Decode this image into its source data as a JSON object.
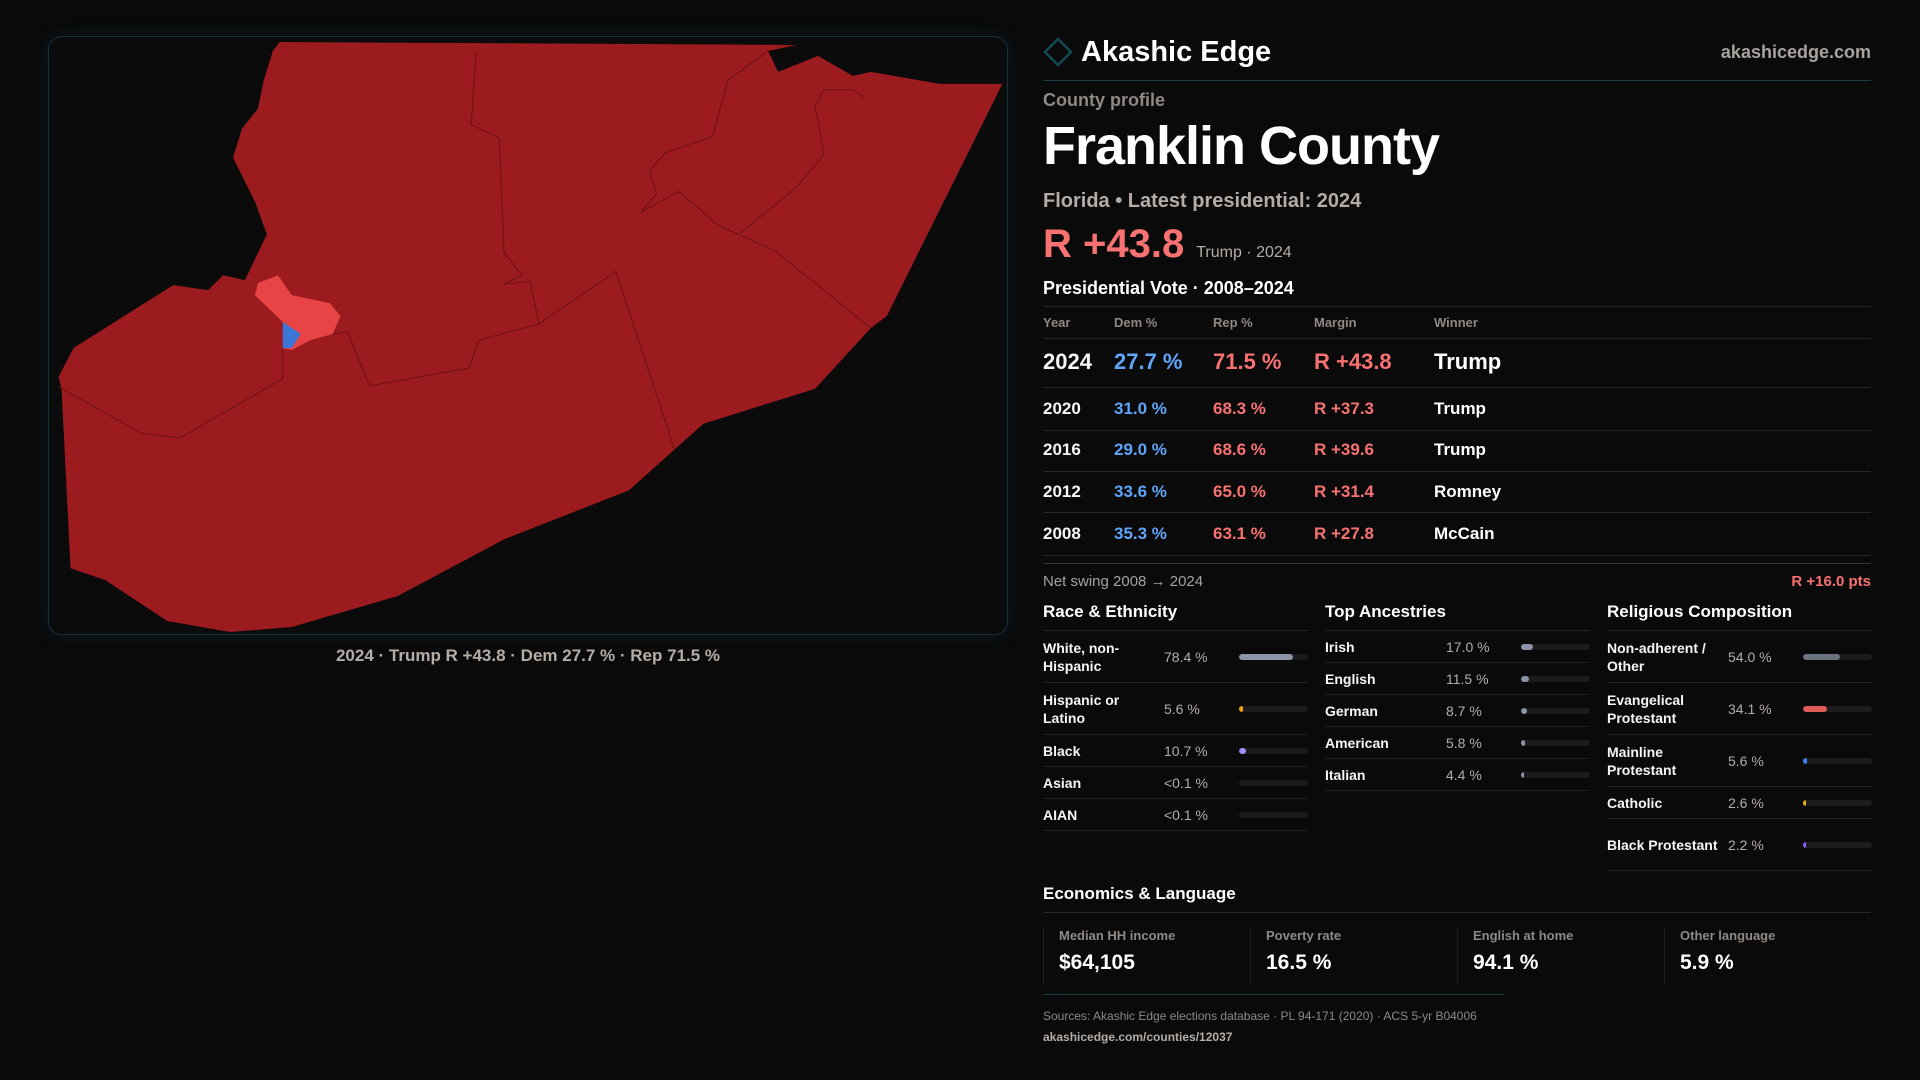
{
  "brand": {
    "name": "Akashic Edge",
    "site": "akashicedge.com",
    "logo_icon": "diamond-outline-icon"
  },
  "header": {
    "label": "County profile",
    "county": "Franklin County",
    "subtitle": "Florida • Latest presidential: 2024",
    "margin": "R +43.8",
    "margin_note": "Trump · 2024"
  },
  "map": {
    "caption": "2024 · Trump R +43.8 · Dem 27.7 % · Rep 71.5 %",
    "colors": {
      "strong_rep": "#9b1b1e",
      "lean_rep": "#e84345",
      "dem": "#3b76d6"
    }
  },
  "votes": {
    "title": "Presidential Vote · 2008–2024",
    "headers": [
      "Year",
      "Dem %",
      "Rep %",
      "Margin",
      "Winner"
    ],
    "rows": [
      {
        "year": "2024",
        "dem": "27.7 %",
        "rep": "71.5 %",
        "margin": "R +43.8",
        "winner": "Trump"
      },
      {
        "year": "2020",
        "dem": "31.0 %",
        "rep": "68.3 %",
        "margin": "R +37.3",
        "winner": "Trump"
      },
      {
        "year": "2016",
        "dem": "29.0 %",
        "rep": "68.6 %",
        "margin": "R +39.6",
        "winner": "Trump"
      },
      {
        "year": "2012",
        "dem": "33.6 %",
        "rep": "65.0 %",
        "margin": "R +31.4",
        "winner": "Romney"
      },
      {
        "year": "2008",
        "dem": "35.3 %",
        "rep": "63.1 %",
        "margin": "R +27.8",
        "winner": "McCain"
      }
    ],
    "swing_label": "Net swing 2008 → 2024",
    "swing_value": "R +16.0 pts"
  },
  "panels": [
    {
      "title": "Race & Ethnicity",
      "items": [
        {
          "label": "White, non-Hispanic",
          "value": "78.4 %",
          "pct": 78.4,
          "color": "#8b95a7"
        },
        {
          "label": "Hispanic or Latino",
          "value": "5.6 %",
          "pct": 5.6,
          "color": "#f59e0b"
        },
        {
          "label": "Black",
          "value": "10.7 %",
          "pct": 10.7,
          "color": "#a78bfa"
        },
        {
          "label": "Asian",
          "value": "<0.1 %",
          "pct": 0,
          "color": "#8b95a7"
        },
        {
          "label": "AIAN",
          "value": "<0.1 %",
          "pct": 0,
          "color": "#8b95a7"
        }
      ]
    },
    {
      "title": "Top Ancestries",
      "items": [
        {
          "label": "Irish",
          "value": "17.0 %",
          "pct": 17.0,
          "color": "#8b95a7"
        },
        {
          "label": "English",
          "value": "11.5 %",
          "pct": 11.5,
          "color": "#8b95a7"
        },
        {
          "label": "German",
          "value": "8.7 %",
          "pct": 8.7,
          "color": "#8b95a7"
        },
        {
          "label": "American",
          "value": "5.8 %",
          "pct": 5.8,
          "color": "#8b95a7"
        },
        {
          "label": "Italian",
          "value": "4.4 %",
          "pct": 4.4,
          "color": "#8b95a7"
        }
      ]
    },
    {
      "title": "Religious Composition",
      "items": [
        {
          "label": "Non-adherent / Other",
          "value": "54.0 %",
          "pct": 54.0,
          "color": "#6b7280"
        },
        {
          "label": "Evangelical Protestant",
          "value": "34.1 %",
          "pct": 34.1,
          "color": "#e05a5a"
        },
        {
          "label": "Mainline Protestant",
          "value": "5.6 %",
          "pct": 5.6,
          "color": "#3b82f6"
        },
        {
          "label": "Catholic",
          "value": "2.6 %",
          "pct": 2.6,
          "color": "#eab308"
        },
        {
          "label": "Black Protestant",
          "value": "2.2 %",
          "pct": 2.2,
          "color": "#8b5cf6"
        }
      ]
    }
  ],
  "economics": {
    "title": "Economics & Language",
    "cards": [
      {
        "label": "Median HH income",
        "value": "$64,105"
      },
      {
        "label": "Poverty rate",
        "value": "16.5 %"
      },
      {
        "label": "English at home",
        "value": "94.1 %"
      },
      {
        "label": "Other language",
        "value": "5.9 %"
      }
    ]
  },
  "sources": {
    "text": "Sources: Akashic Edge elections database · PL 94-171 (2020) · ACS 5-yr B04006",
    "url": "akashicedge.com/counties/12037"
  }
}
